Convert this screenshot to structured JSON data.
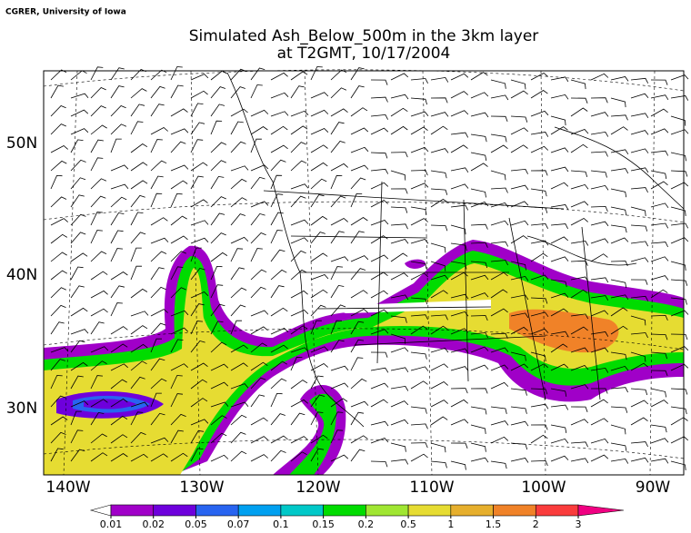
{
  "credit": "CGRER, University of Iowa",
  "title": [
    "Simulated Ash_Below_500m in the 3km layer",
    "at T2GMT, 10/17/2004"
  ],
  "map": {
    "lat_labels": [
      "50N",
      "40N",
      "30N"
    ],
    "lon_labels": [
      "140W",
      "130W",
      "120W",
      "110W",
      "100W",
      "90W"
    ]
  },
  "colorbar": {
    "ticks": [
      0.01,
      0.02,
      0.05,
      0.07,
      0.1,
      0.15,
      0.2,
      0.5,
      1,
      1.5,
      2,
      3
    ],
    "colors": [
      "#a000c8",
      "#6e00dc",
      "#2864f0",
      "#00a0f0",
      "#00c8c8",
      "#00dc00",
      "#a0e632",
      "#e6dc32",
      "#e6af2d",
      "#f08228",
      "#fa3c3c"
    ],
    "under_color": "#ffffff",
    "over_color": "#f00082"
  }
}
